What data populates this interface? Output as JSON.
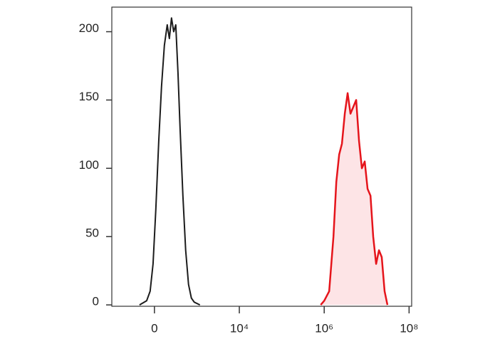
{
  "chart_data": {
    "type": "line",
    "xscale": "asinh",
    "xscale_cofactor": 200,
    "xlim": [
      -1000,
      115000000
    ],
    "ylim": [
      -1,
      218
    ],
    "xticks": [
      0,
      {
        "value": 10000,
        "label": "10⁴"
      },
      {
        "value": 1000000,
        "label": "10⁶"
      },
      {
        "value": 100000000,
        "label": "10⁸"
      }
    ],
    "yticks": [
      0,
      50,
      100,
      150,
      200
    ],
    "series": [
      {
        "color": "#1c1c1c",
        "x": [
          -180,
          -87,
          -47,
          -15,
          15,
          47,
          79,
          113,
          150,
          180,
          213,
          249,
          287,
          331,
          377,
          446,
          526,
          620,
          728,
          854,
          1170
        ],
        "values": [
          0,
          3,
          10,
          30,
          70,
          120,
          160,
          190,
          205,
          195,
          210,
          200,
          205,
          170,
          130,
          80,
          40,
          15,
          5,
          2,
          0
        ]
      },
      {
        "color": "#e5141b",
        "fill": "#fde4e6",
        "x": [
          826000,
          1000000,
          1310000,
          1650000,
          1930000,
          2250000,
          2620000,
          3060000,
          3570000,
          4160000,
          4860000,
          5670000,
          6610000,
          7710000,
          9000000,
          10500000,
          12300000,
          14300000,
          16700000,
          19500000,
          22700000,
          26500000,
          30900000
        ],
        "values": [
          0,
          3,
          10,
          50,
          90,
          110,
          118,
          140,
          155,
          140,
          145,
          150,
          120,
          100,
          105,
          85,
          80,
          50,
          30,
          40,
          35,
          10,
          0
        ]
      }
    ]
  }
}
